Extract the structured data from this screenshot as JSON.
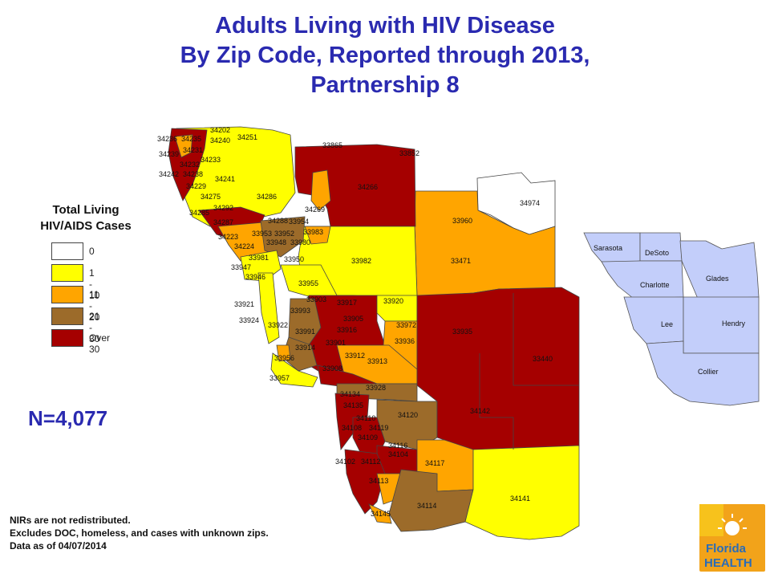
{
  "title": {
    "line1": "Adults Living with HIV Disease",
    "line2": "By Zip Code, Reported through 2013,",
    "line3": "Partnership 8"
  },
  "legend": {
    "title_line1": "Total Living",
    "title_line2": "HIV/AIDS Cases",
    "items": [
      {
        "label": "0",
        "color": "#ffffff"
      },
      {
        "label": "1 - 10",
        "color": "#ffff00"
      },
      {
        "label": "11 - 20",
        "color": "#ffa500"
      },
      {
        "label": "21 - 30",
        "color": "#9c6b2a"
      },
      {
        "label": "Over 30",
        "color": "#a50000"
      }
    ]
  },
  "total": "N=4,077",
  "notes": [
    "NIRs are not redistributed.",
    "Excludes DOC, homeless, and cases with unknown zips.",
    "Data as of 04/07/2014"
  ],
  "inset_counties": [
    "Sarasota",
    "DeSoto",
    "Charlotte",
    "Glades",
    "Lee",
    "Hendry",
    "Collier"
  ],
  "zip_labels": [
    "34236",
    "34235",
    "34202",
    "34240",
    "34251",
    "34239",
    "34231",
    "34232",
    "34242",
    "34238",
    "34233",
    "34241",
    "34229",
    "34275",
    "34285",
    "34292",
    "34286",
    "34269",
    "34287",
    "34288",
    "34223",
    "34224",
    "33953",
    "33952",
    "33954",
    "33983",
    "33948",
    "33980",
    "33981",
    "33947",
    "33946",
    "33950",
    "33955",
    "33982",
    "33471",
    "33960",
    "34974",
    "33865",
    "33852",
    "34266",
    "33921",
    "33924",
    "33922",
    "33993",
    "33917",
    "33920",
    "33903",
    "33905",
    "33991",
    "33916",
    "33972",
    "33936",
    "33914",
    "33901",
    "33912",
    "33913",
    "33956",
    "33957",
    "33908",
    "33935",
    "33440",
    "34142",
    "34134",
    "33928",
    "34135",
    "34110",
    "34108",
    "34119",
    "34120",
    "34109",
    "34116",
    "34104",
    "34102",
    "34117",
    "34112",
    "34113",
    "34141",
    "34145",
    "34114"
  ],
  "logo": {
    "word1": "Florida",
    "word2": "HEALTH"
  },
  "colors": {
    "title": "#2a2ab0",
    "inset_fill": "#c3cefa",
    "dark_red": "#a50000",
    "orange": "#ffa500",
    "brown": "#9c6b2a",
    "yellow": "#ffff00"
  }
}
